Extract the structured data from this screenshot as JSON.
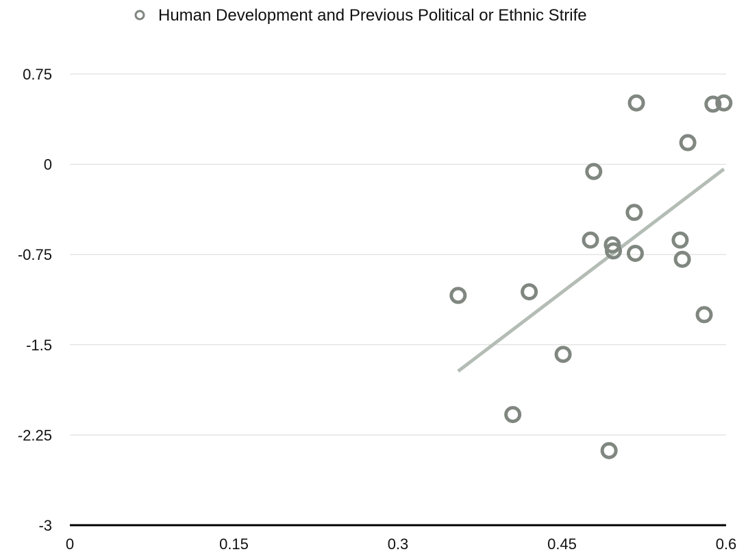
{
  "chart_data": {
    "type": "scatter",
    "title": "",
    "xlabel": "",
    "ylabel": "",
    "xlim": [
      0,
      0.6
    ],
    "ylim": [
      -3,
      0.75
    ],
    "x_ticks": [
      "0",
      "0.15",
      "0.3",
      "0.45",
      "0.6"
    ],
    "y_ticks": [
      "0.75",
      "0",
      "-0.75",
      "-1.5",
      "-2.25",
      "-3"
    ],
    "x_tick_values": [
      0,
      0.15,
      0.3,
      0.45,
      0.6
    ],
    "y_tick_values": [
      0.75,
      0,
      -0.75,
      -1.5,
      -2.25,
      -3
    ],
    "grid": "horizontal",
    "legend_position": "top-center",
    "series": [
      {
        "name": "Human Development and Previous Political or Ethnic Strife",
        "color": "#808780",
        "points": [
          {
            "x": 0.355,
            "y": -1.09
          },
          {
            "x": 0.405,
            "y": -2.08
          },
          {
            "x": 0.42,
            "y": -1.06
          },
          {
            "x": 0.451,
            "y": -1.58
          },
          {
            "x": 0.476,
            "y": -0.63
          },
          {
            "x": 0.479,
            "y": -0.06
          },
          {
            "x": 0.493,
            "y": -2.38
          },
          {
            "x": 0.496,
            "y": -0.67
          },
          {
            "x": 0.497,
            "y": -0.72
          },
          {
            "x": 0.516,
            "y": -0.4
          },
          {
            "x": 0.517,
            "y": -0.74
          },
          {
            "x": 0.518,
            "y": 0.51
          },
          {
            "x": 0.558,
            "y": -0.63
          },
          {
            "x": 0.56,
            "y": -0.79
          },
          {
            "x": 0.565,
            "y": 0.18
          },
          {
            "x": 0.58,
            "y": -1.25
          },
          {
            "x": 0.588,
            "y": 0.5
          },
          {
            "x": 0.598,
            "y": 0.51
          }
        ]
      }
    ],
    "trendline": {
      "type": "linear",
      "color": "#b4bdb5",
      "x": [
        0.355,
        0.598
      ],
      "y": [
        -1.72,
        -0.04
      ]
    }
  }
}
